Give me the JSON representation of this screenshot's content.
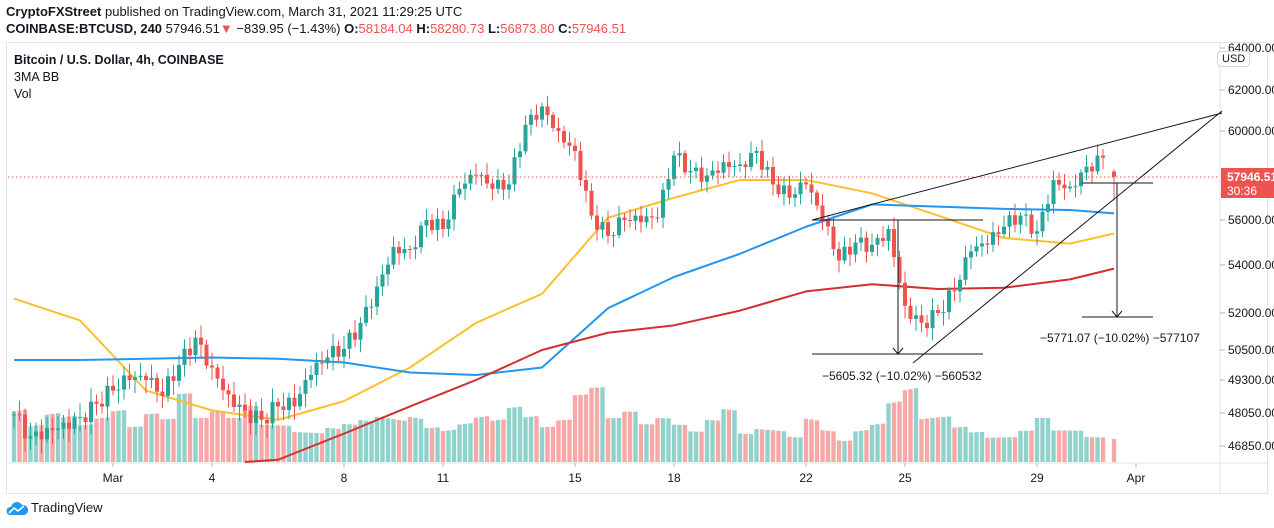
{
  "header": {
    "publisher": "CryptoFXStreet",
    "published_text": "published on TradingView.com, March 31, 2021 11:29:25 UTC",
    "symbol": "COINBASE:BTCUSD, 240",
    "last": "57946.51",
    "change": "−839.95 (−1.43%)",
    "o_label": "O:",
    "o": "58184.04",
    "h_label": "H:",
    "h": "58280.73",
    "l_label": "L:",
    "l": "56873.80",
    "c_label": "C:",
    "c": "57946.51"
  },
  "legend": {
    "title": "Bitcoin / U.S. Dollar, 4h, COINBASE",
    "indicator": "3MA BB",
    "volume": "Vol"
  },
  "price_axis": {
    "currency": "USD",
    "ticks": [
      "64000.00",
      "62000.00",
      "60000.00",
      "56000.00",
      "54000.00",
      "52000.00",
      "50500.00",
      "49300.00",
      "48050.00",
      "46850.00"
    ],
    "last_price": "57946.51",
    "countdown": "30:36"
  },
  "measurements": [
    {
      "label": "−5605.32 (−10.02%) −560532"
    },
    {
      "label": "−5771.07 (−10.02%) −577107"
    }
  ],
  "footer": {
    "brand": "TradingView"
  },
  "colors": {
    "up": "#26a69a",
    "down": "#ef5350",
    "ma_fast": "#fbc02d",
    "ma_mid": "#2196f3",
    "ma_slow": "#d32f2f",
    "last_price": "#ef5350"
  },
  "chart_data": {
    "type": "candlestick",
    "interval": "4h",
    "time_ticks": [
      {
        "label": "Mar",
        "date": "2021-03-01"
      },
      {
        "label": "4",
        "date": "2021-03-04"
      },
      {
        "label": "8",
        "date": "2021-03-08"
      },
      {
        "label": "11",
        "date": "2021-03-11"
      },
      {
        "label": "15",
        "date": "2021-03-15"
      },
      {
        "label": "18",
        "date": "2021-03-18"
      },
      {
        "label": "22",
        "date": "2021-03-22"
      },
      {
        "label": "25",
        "date": "2021-03-25"
      },
      {
        "label": "29",
        "date": "2021-03-29"
      },
      {
        "label": "Apr",
        "date": "2021-04-01"
      }
    ],
    "close_12h_start": "2021-02-26T00:00",
    "close_12h": [
      48000,
      47200,
      47500,
      47700,
      47900,
      48400,
      48900,
      49300,
      49300,
      48700,
      49900,
      51000,
      49800,
      48750,
      48150,
      47800,
      48300,
      48300,
      49500,
      50200,
      50550,
      51600,
      53100,
      54800,
      54700,
      56000,
      55600,
      57400,
      58000,
      57400,
      57600,
      60300,
      61200,
      60000,
      59100,
      56200,
      55300,
      56000,
      55900,
      56100,
      58900,
      58200,
      58000,
      58600,
      58500,
      59100,
      57600,
      57000,
      57600,
      56000,
      54200,
      55000,
      54900,
      55600,
      52300,
      51600,
      52000,
      52900,
      54600,
      54900,
      55700,
      56200,
      55500,
      57800,
      57500,
      58400,
      58800
    ],
    "last_candle": {
      "time": "2021-03-31T08:00",
      "open": 58184.04,
      "high": 58280.73,
      "low": 56873.8,
      "close": 57946.51
    },
    "volume_12h_relative": [
      60,
      40,
      50,
      45,
      35,
      40,
      45,
      30,
      40,
      35,
      55,
      35,
      40,
      35,
      45,
      30,
      30,
      25,
      25,
      30,
      35,
      40,
      45,
      45,
      50,
      40,
      35,
      40,
      45,
      40,
      50,
      40,
      30,
      35,
      55,
      60,
      35,
      40,
      30,
      35,
      30,
      25,
      35,
      45,
      25,
      30,
      30,
      25,
      45,
      35,
      25,
      35,
      40,
      60,
      70,
      40,
      40,
      30,
      25,
      20,
      20,
      25,
      35,
      25,
      25,
      20,
      20
    ],
    "moving_averages": [
      {
        "color": "#fbc02d",
        "points": [
          [
            "2021-02-26",
            52600
          ],
          [
            "2021-02-28",
            51700
          ],
          [
            "2021-03-02",
            48900
          ],
          [
            "2021-03-04",
            48150
          ],
          [
            "2021-03-06",
            47800
          ],
          [
            "2021-03-08",
            48500
          ],
          [
            "2021-03-10",
            49800
          ],
          [
            "2021-03-12",
            51600
          ],
          [
            "2021-03-14",
            52800
          ],
          [
            "2021-03-16",
            56100
          ],
          [
            "2021-03-18",
            57000
          ],
          [
            "2021-03-20",
            57800
          ],
          [
            "2021-03-22",
            57800
          ],
          [
            "2021-03-24",
            57200
          ],
          [
            "2021-03-26",
            56200
          ],
          [
            "2021-03-28",
            55200
          ],
          [
            "2021-03-30",
            54950
          ],
          [
            "2021-03-31T08:00",
            55400
          ]
        ]
      },
      {
        "color": "#2196f3",
        "points": [
          [
            "2021-02-26",
            50100
          ],
          [
            "2021-02-28",
            50100
          ],
          [
            "2021-03-02",
            50150
          ],
          [
            "2021-03-04",
            50200
          ],
          [
            "2021-03-06",
            50150
          ],
          [
            "2021-03-08",
            50000
          ],
          [
            "2021-03-10",
            49600
          ],
          [
            "2021-03-12",
            49500
          ],
          [
            "2021-03-14",
            49800
          ],
          [
            "2021-03-16",
            52200
          ],
          [
            "2021-03-18",
            53500
          ],
          [
            "2021-03-20",
            54500
          ],
          [
            "2021-03-22",
            55700
          ],
          [
            "2021-03-24",
            56700
          ],
          [
            "2021-03-26",
            56600
          ],
          [
            "2021-03-28",
            56500
          ],
          [
            "2021-03-30",
            56450
          ],
          [
            "2021-03-31T08:00",
            56300
          ]
        ]
      },
      {
        "color": "#d32f2f",
        "points": [
          [
            "2021-03-05",
            46000
          ],
          [
            "2021-03-06",
            46350
          ],
          [
            "2021-03-08",
            47300
          ],
          [
            "2021-03-10",
            48300
          ],
          [
            "2021-03-12",
            49300
          ],
          [
            "2021-03-14",
            50500
          ],
          [
            "2021-03-16",
            51200
          ],
          [
            "2021-03-18",
            51500
          ],
          [
            "2021-03-20",
            52100
          ],
          [
            "2021-03-22",
            52900
          ],
          [
            "2021-03-24",
            53200
          ],
          [
            "2021-03-26",
            53000
          ],
          [
            "2021-03-28",
            53050
          ],
          [
            "2021-03-30",
            53400
          ],
          [
            "2021-03-31T08:00",
            53850
          ]
        ]
      }
    ]
  }
}
